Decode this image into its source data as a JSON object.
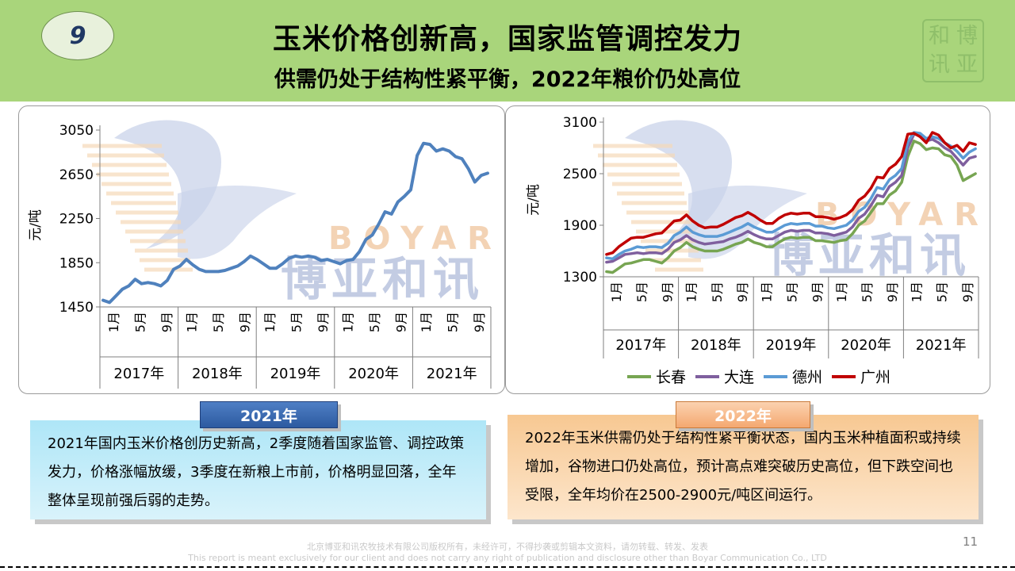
{
  "header": {
    "badge": "9",
    "title": "玉米价格创新高，国家监管调控发力",
    "subtitle": "供需仍处于结构性紧平衡，2022年粮价仍处高位",
    "seal_chars": [
      "和",
      "博",
      "讯",
      "亚"
    ]
  },
  "watermark": {
    "en": "BOYAR",
    "cn": "博亚和讯"
  },
  "chart_data": [
    {
      "type": "line",
      "ylabel": "元/吨",
      "yticks": [
        1450,
        1850,
        2250,
        2650,
        3050
      ],
      "ylim": [
        1450,
        3050
      ],
      "month_labels": [
        "1月",
        "5月",
        "9月"
      ],
      "years": [
        "2017年",
        "2018年",
        "2019年",
        "2020年",
        "2021年"
      ],
      "series": [
        {
          "color": "#4f81bd",
          "values": [
            1510,
            1490,
            1550,
            1610,
            1640,
            1700,
            1660,
            1670,
            1660,
            1640,
            1690,
            1790,
            1820,
            1880,
            1830,
            1790,
            1770,
            1770,
            1770,
            1780,
            1800,
            1820,
            1860,
            1910,
            1880,
            1840,
            1800,
            1800,
            1840,
            1890,
            1910,
            1900,
            1910,
            1900,
            1870,
            1880,
            1860,
            1840,
            1870,
            1880,
            1950,
            2060,
            2100,
            2200,
            2310,
            2290,
            2400,
            2450,
            2510,
            2820,
            2930,
            2920,
            2860,
            2880,
            2860,
            2810,
            2790,
            2700,
            2580,
            2640,
            2660
          ]
        }
      ]
    },
    {
      "type": "line",
      "ylabel": "元/吨",
      "yticks": [
        1300,
        1900,
        2500,
        3100
      ],
      "ylim": [
        1300,
        3100
      ],
      "month_labels": [
        "1月",
        "5月",
        "9月"
      ],
      "years": [
        "2017年",
        "2018年",
        "2019年",
        "2020年",
        "2021年"
      ],
      "legend_position": "bottom",
      "series": [
        {
          "name": "长春",
          "color": "#77a552",
          "values": [
            1360,
            1350,
            1400,
            1450,
            1460,
            1480,
            1500,
            1500,
            1480,
            1460,
            1520,
            1600,
            1640,
            1700,
            1650,
            1620,
            1600,
            1600,
            1600,
            1620,
            1650,
            1680,
            1700,
            1740,
            1700,
            1680,
            1650,
            1650,
            1700,
            1740,
            1760,
            1750,
            1760,
            1760,
            1720,
            1720,
            1710,
            1700,
            1720,
            1730,
            1800,
            1900,
            1950,
            2050,
            2150,
            2150,
            2250,
            2300,
            2400,
            2700,
            2880,
            2850,
            2780,
            2800,
            2790,
            2720,
            2700,
            2600,
            2420,
            2460,
            2500
          ]
        },
        {
          "name": "大连",
          "color": "#7f5f9e",
          "values": [
            1470,
            1480,
            1520,
            1560,
            1570,
            1580,
            1570,
            1580,
            1580,
            1570,
            1620,
            1700,
            1730,
            1780,
            1730,
            1700,
            1680,
            1690,
            1700,
            1710,
            1740,
            1760,
            1790,
            1830,
            1790,
            1760,
            1740,
            1740,
            1780,
            1820,
            1840,
            1830,
            1840,
            1840,
            1810,
            1810,
            1800,
            1780,
            1800,
            1820,
            1880,
            1980,
            2030,
            2130,
            2250,
            2230,
            2350,
            2400,
            2480,
            2800,
            2960,
            2950,
            2880,
            2900,
            2860,
            2800,
            2760,
            2680,
            2600,
            2680,
            2700
          ]
        },
        {
          "name": "德州",
          "color": "#5b9bd5",
          "values": [
            1520,
            1510,
            1560,
            1600,
            1620,
            1650,
            1640,
            1650,
            1650,
            1640,
            1690,
            1780,
            1820,
            1880,
            1820,
            1790,
            1770,
            1770,
            1770,
            1790,
            1820,
            1850,
            1880,
            1920,
            1880,
            1850,
            1820,
            1820,
            1860,
            1900,
            1920,
            1910,
            1920,
            1920,
            1890,
            1890,
            1870,
            1860,
            1880,
            1900,
            1960,
            2060,
            2110,
            2210,
            2340,
            2320,
            2430,
            2480,
            2560,
            2870,
            2980,
            2970,
            2910,
            2930,
            2910,
            2860,
            2820,
            2760,
            2680,
            2750,
            2790
          ]
        },
        {
          "name": "广州",
          "color": "#c00000",
          "values": [
            1560,
            1580,
            1650,
            1700,
            1750,
            1760,
            1760,
            1780,
            1800,
            1810,
            1880,
            1950,
            1960,
            2020,
            1950,
            1900,
            1870,
            1880,
            1880,
            1910,
            1950,
            1990,
            2010,
            2050,
            2010,
            1960,
            1920,
            1920,
            1980,
            2020,
            2040,
            2030,
            2040,
            2040,
            2000,
            2000,
            1990,
            1970,
            1990,
            2020,
            2080,
            2190,
            2240,
            2330,
            2460,
            2450,
            2560,
            2610,
            2700,
            2960,
            2970,
            2930,
            2860,
            2980,
            2950,
            2860,
            2800,
            2830,
            2760,
            2860,
            2840
          ]
        }
      ]
    }
  ],
  "box_2021": {
    "tab": "2021年",
    "text": "2021年国内玉米价格创历史新高，2季度随着国家监管、调控政策发力，价格涨幅放缓，3季度在新粮上市前，价格明显回落，全年整体呈现前强后弱的走势。"
  },
  "box_2022": {
    "tab": "2022年",
    "text": "2022年玉米供需仍处于结构性紧平衡状态，国内玉米种植面积或持续增加，谷物进口仍处高位，预计高点难突破历史高位，但下跌空间也受限，全年均价在2500-2900元/吨区间运行。"
  },
  "footer": {
    "cn": "北京博亚和讯农牧技术有限公司版权所有，未经许可，不得抄袭或剪辑本文资料，请勿转载、转发、发表",
    "en": "This report is meant exclusively for our client and does not carry any right of publication and disclosure other than Boyar Communication Co., LTD",
    "page": "11"
  }
}
